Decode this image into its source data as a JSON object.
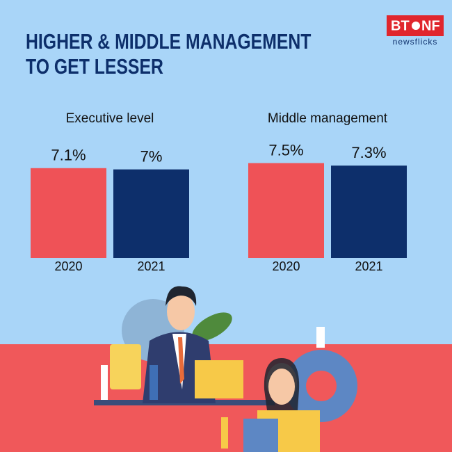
{
  "title": [
    "HIGHER & MIDDLE MANAGEMENT",
    "TO GET LESSER"
  ],
  "logo": {
    "left": "BT",
    "right": "NF",
    "tagline": "newsflicks"
  },
  "chart_data": [
    {
      "type": "bar",
      "title": "Executive level",
      "categories": [
        "2020",
        "2021"
      ],
      "values": [
        7.1,
        7
      ],
      "value_labels": [
        "7.1%",
        "7%"
      ],
      "colors": [
        "#ef5257",
        "#0d2f6b"
      ]
    },
    {
      "type": "bar",
      "title": "Middle management",
      "categories": [
        "2020",
        "2021"
      ],
      "values": [
        7.5,
        7.3
      ],
      "value_labels": [
        "7.5%",
        "7.3%"
      ],
      "colors": [
        "#ef5257",
        "#0d2f6b"
      ]
    }
  ]
}
